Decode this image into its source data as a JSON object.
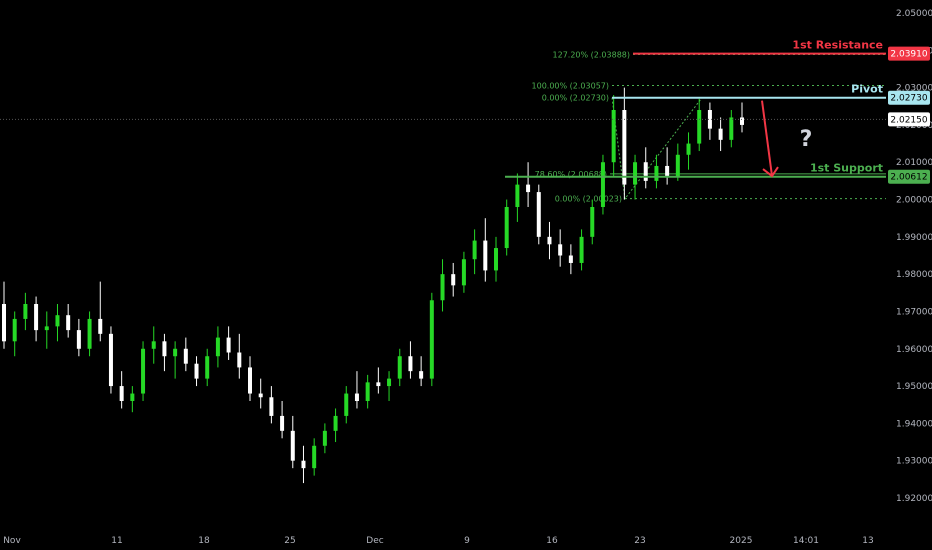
{
  "chart_data": {
    "type": "candlestick",
    "ylim": [
      1.915,
      2.055
    ],
    "yticks": [
      "2.05000",
      "2.04000",
      "2.03000",
      "2.02000",
      "2.01000",
      "2.00000",
      "1.99000",
      "1.98000",
      "1.97000",
      "1.96000",
      "1.95000",
      "1.94000",
      "1.93000",
      "1.92000"
    ],
    "ytick_values": [
      2.05,
      2.04,
      2.03,
      2.02,
      2.01,
      2.0,
      1.99,
      1.98,
      1.97,
      1.96,
      1.95,
      1.94,
      1.93,
      1.92
    ],
    "xticks": [
      "Nov",
      "11",
      "18",
      "25",
      "Dec",
      "9",
      "16",
      "23",
      "2025",
      "14:01",
      "13"
    ],
    "current_price": {
      "label": "2.02150",
      "value": 2.0215
    },
    "levels": [
      {
        "name": "1st Resistance",
        "value": 2.0391,
        "badge": "2.03910",
        "color": "#f23645"
      },
      {
        "name": "Pivot",
        "value": 2.0273,
        "badge": "2.02730",
        "color": "#a8e6f0"
      },
      {
        "name": "1st Support",
        "value": 2.00612,
        "badge": "2.00612",
        "color": "#4caf50"
      }
    ],
    "fib_labels": [
      {
        "text": "127.20% (2.03888)",
        "value": 2.03888
      },
      {
        "text": "100.00% (2.03057)",
        "value": 2.03057
      },
      {
        "text": "0.00% (2.02730)",
        "value": 2.0273
      },
      {
        "text": "78.60% (2.00688)",
        "value": 2.00688
      },
      {
        "text": "0.00% (2.00023)",
        "value": 2.00023
      }
    ],
    "annotation": "?",
    "candles": [
      [
        1.972,
        1.978,
        1.96,
        1.962
      ],
      [
        1.962,
        1.97,
        1.958,
        1.968
      ],
      [
        1.968,
        1.975,
        1.965,
        1.972
      ],
      [
        1.972,
        1.974,
        1.962,
        1.965
      ],
      [
        1.965,
        1.97,
        1.96,
        1.966
      ],
      [
        1.966,
        1.972,
        1.962,
        1.969
      ],
      [
        1.969,
        1.972,
        1.963,
        1.965
      ],
      [
        1.965,
        1.968,
        1.958,
        1.96
      ],
      [
        1.96,
        1.97,
        1.958,
        1.968
      ],
      [
        1.968,
        1.978,
        1.962,
        1.964
      ],
      [
        1.964,
        1.966,
        1.948,
        1.95
      ],
      [
        1.95,
        1.954,
        1.944,
        1.946
      ],
      [
        1.946,
        1.95,
        1.943,
        1.948
      ],
      [
        1.948,
        1.962,
        1.946,
        1.96
      ],
      [
        1.96,
        1.966,
        1.956,
        1.962
      ],
      [
        1.962,
        1.964,
        1.954,
        1.958
      ],
      [
        1.958,
        1.962,
        1.952,
        1.96
      ],
      [
        1.96,
        1.963,
        1.954,
        1.956
      ],
      [
        1.956,
        1.958,
        1.95,
        1.952
      ],
      [
        1.952,
        1.96,
        1.95,
        1.958
      ],
      [
        1.958,
        1.966,
        1.955,
        1.963
      ],
      [
        1.963,
        1.966,
        1.957,
        1.959
      ],
      [
        1.959,
        1.964,
        1.952,
        1.955
      ],
      [
        1.955,
        1.958,
        1.946,
        1.948
      ],
      [
        1.948,
        1.952,
        1.944,
        1.947
      ],
      [
        1.947,
        1.95,
        1.94,
        1.942
      ],
      [
        1.942,
        1.946,
        1.936,
        1.938
      ],
      [
        1.938,
        1.942,
        1.928,
        1.93
      ],
      [
        1.93,
        1.934,
        1.924,
        1.928
      ],
      [
        1.928,
        1.936,
        1.926,
        1.934
      ],
      [
        1.934,
        1.94,
        1.932,
        1.938
      ],
      [
        1.938,
        1.944,
        1.935,
        1.942
      ],
      [
        1.942,
        1.95,
        1.94,
        1.948
      ],
      [
        1.948,
        1.954,
        1.944,
        1.946
      ],
      [
        1.946,
        1.953,
        1.944,
        1.951
      ],
      [
        1.951,
        1.955,
        1.948,
        1.95
      ],
      [
        1.95,
        1.954,
        1.946,
        1.952
      ],
      [
        1.952,
        1.96,
        1.95,
        1.958
      ],
      [
        1.958,
        1.962,
        1.952,
        1.954
      ],
      [
        1.954,
        1.958,
        1.95,
        1.952
      ],
      [
        1.952,
        1.975,
        1.95,
        1.973
      ],
      [
        1.973,
        1.984,
        1.97,
        1.98
      ],
      [
        1.98,
        1.983,
        1.974,
        1.977
      ],
      [
        1.977,
        1.986,
        1.975,
        1.984
      ],
      [
        1.984,
        1.992,
        1.98,
        1.989
      ],
      [
        1.989,
        1.995,
        1.978,
        1.981
      ],
      [
        1.981,
        1.99,
        1.978,
        1.987
      ],
      [
        1.987,
        2.0,
        1.985,
        1.998
      ],
      [
        1.998,
        2.007,
        1.994,
        2.004
      ],
      [
        2.004,
        2.01,
        1.998,
        2.002
      ],
      [
        2.002,
        2.004,
        1.988,
        1.99
      ],
      [
        1.99,
        1.994,
        1.984,
        1.988
      ],
      [
        1.988,
        1.992,
        1.982,
        1.985
      ],
      [
        1.985,
        1.988,
        1.98,
        1.983
      ],
      [
        1.983,
        1.992,
        1.981,
        1.99
      ],
      [
        1.99,
        2.0,
        1.988,
        1.998
      ],
      [
        1.998,
        2.012,
        1.996,
        2.01
      ],
      [
        2.01,
        2.028,
        2.006,
        2.024
      ],
      [
        2.024,
        2.03,
        2.0,
        2.004
      ],
      [
        2.004,
        2.012,
        2.0,
        2.01
      ],
      [
        2.01,
        2.014,
        2.003,
        2.005
      ],
      [
        2.005,
        2.012,
        2.003,
        2.009
      ],
      [
        2.009,
        2.014,
        2.004,
        2.006
      ],
      [
        2.006,
        2.015,
        2.005,
        2.012
      ],
      [
        2.012,
        2.018,
        2.008,
        2.015
      ],
      [
        2.015,
        2.027,
        2.013,
        2.024
      ],
      [
        2.024,
        2.026,
        2.016,
        2.019
      ],
      [
        2.019,
        2.022,
        2.013,
        2.016
      ],
      [
        2.016,
        2.024,
        2.014,
        2.022
      ],
      [
        2.022,
        2.026,
        2.018,
        2.02
      ]
    ]
  }
}
